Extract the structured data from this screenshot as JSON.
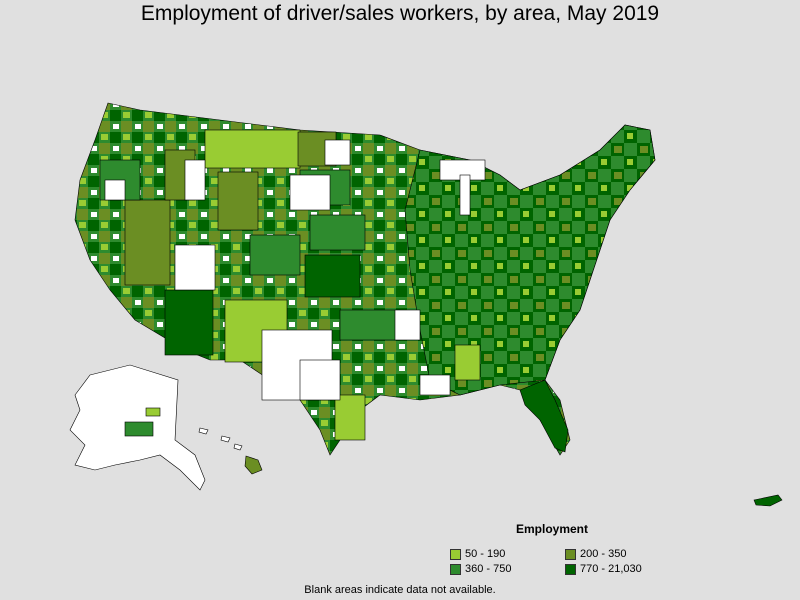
{
  "title": "Employment of driver/sales workers, by area, May 2019",
  "legend": {
    "title": "Employment",
    "items": [
      {
        "label": "50 - 190",
        "color": "#99cc33"
      },
      {
        "label": "200 - 350",
        "color": "#6b8e23"
      },
      {
        "label": "360 - 750",
        "color": "#2e8b2e"
      },
      {
        "label": "770 - 21,030",
        "color": "#006400"
      }
    ]
  },
  "footnote": "Blank areas indicate data not available.",
  "colors": {
    "background": "#e0e0e0",
    "no_data": "#ffffff",
    "border": "#000000"
  }
}
